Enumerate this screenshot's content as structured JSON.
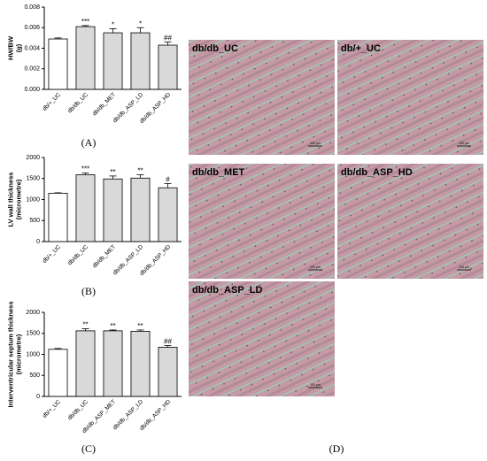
{
  "chart_data": [
    {
      "type": "bar",
      "y_label": [
        "HW/BW",
        "(g)"
      ],
      "panel_label": "(A)",
      "categories": [
        "db/+_UC",
        "db/db_UC",
        "db/db_MET",
        "db/db_ASP_LD",
        "db/db_ASP_HD"
      ],
      "values": [
        0.0049,
        0.0061,
        0.0055,
        0.0055,
        0.0043
      ],
      "errors": [
        0.0001,
        0.0001,
        0.0004,
        0.0005,
        0.0003
      ],
      "annotations": [
        "",
        "***",
        "*",
        "*",
        "##"
      ],
      "colors": [
        "#ffffff",
        "#d9d9d9",
        "#d9d9d9",
        "#d9d9d9",
        "#d9d9d9"
      ],
      "ylim": [
        0,
        0.008
      ],
      "yticks": [
        {
          "value": 0,
          "label": "0.000"
        },
        {
          "value": 0.002,
          "label": "0.002"
        },
        {
          "value": 0.004,
          "label": "0.004"
        },
        {
          "value": 0.006,
          "label": "0.006"
        },
        {
          "value": 0.008,
          "label": "0.008"
        }
      ]
    },
    {
      "type": "bar",
      "y_label": [
        "LV wall thickness",
        "(micrometre)"
      ],
      "panel_label": "(B)",
      "categories": [
        "db/+_UC",
        "db/db_UC",
        "db/db_MET",
        "db/db_ASP_LD",
        "db/db_ASP_HD"
      ],
      "values": [
        1150,
        1590,
        1490,
        1510,
        1280
      ],
      "errors": [
        10,
        40,
        70,
        80,
        100
      ],
      "annotations": [
        "",
        "***",
        "**",
        "**",
        "#"
      ],
      "colors": [
        "#ffffff",
        "#d9d9d9",
        "#d9d9d9",
        "#d9d9d9",
        "#d9d9d9"
      ],
      "ylim": [
        0,
        2000
      ],
      "yticks": [
        0,
        500,
        1000,
        1500,
        2000
      ]
    },
    {
      "type": "bar",
      "y_label": [
        "Interventricular septum thickness",
        "(micrometre)"
      ],
      "panel_label": "(C)",
      "categories": [
        "db/+_UC",
        "db/db_UC",
        "db/db_ASP_MET",
        "db/db_ASP_LD",
        "db/db_ASP_HD"
      ],
      "values": [
        1120,
        1560,
        1560,
        1550,
        1170
      ],
      "errors": [
        20,
        50,
        20,
        30,
        40
      ],
      "annotations": [
        "",
        "**",
        "**",
        "**",
        "##"
      ],
      "colors": [
        "#ffffff",
        "#d9d9d9",
        "#d9d9d9",
        "#d9d9d9",
        "#d9d9d9"
      ],
      "ylim": [
        0,
        2000
      ],
      "yticks": [
        0,
        500,
        1000,
        1500,
        2000
      ]
    }
  ],
  "images": [
    {
      "label": "db/db_UC"
    },
    {
      "label": "db/+_UC"
    },
    {
      "label": "db/db_MET"
    },
    {
      "label": "db/db_ASP_HD"
    },
    {
      "label": "db/db_ASP_LD"
    }
  ],
  "scale_bar": "100 µm",
  "images_panel_label": "(D)"
}
